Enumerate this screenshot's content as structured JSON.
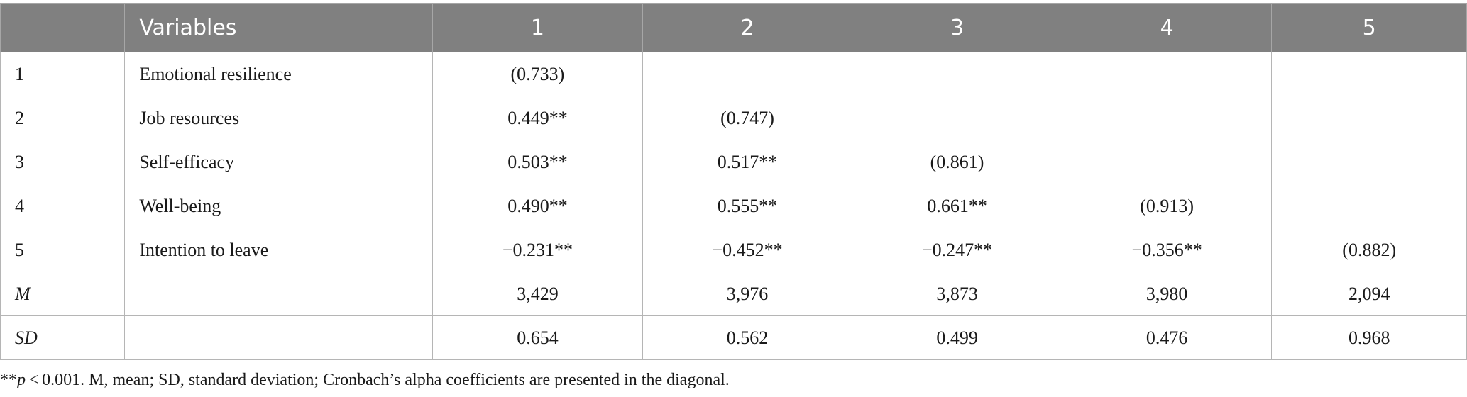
{
  "table": {
    "headers": [
      "",
      "Variables",
      "1",
      "2",
      "3",
      "4",
      "5"
    ],
    "rows": [
      {
        "idx": "1",
        "variable": "Emotional resilience",
        "cells": [
          "(0.733)",
          "",
          "",
          "",
          ""
        ]
      },
      {
        "idx": "2",
        "variable": "Job resources",
        "cells": [
          "0.449**",
          "(0.747)",
          "",
          "",
          ""
        ]
      },
      {
        "idx": "3",
        "variable": "Self-efficacy",
        "cells": [
          "0.503**",
          "0.517**",
          "(0.861)",
          "",
          ""
        ]
      },
      {
        "idx": "4",
        "variable": "Well-being",
        "cells": [
          "0.490**",
          "0.555**",
          "0.661**",
          "(0.913)",
          ""
        ]
      },
      {
        "idx": "5",
        "variable": "Intention to leave",
        "cells": [
          "−0.231**",
          "−0.452**",
          "−0.247**",
          "−0.356**",
          "(0.882)"
        ]
      },
      {
        "idx": "M",
        "variable": "",
        "cells": [
          "3,429",
          "3,976",
          "3,873",
          "3,980",
          "2,094"
        ]
      },
      {
        "idx": "SD",
        "variable": "",
        "cells": [
          "0.654",
          "0.562",
          "0.499",
          "0.476",
          "0.968"
        ]
      }
    ]
  },
  "footnote": {
    "stars": "**",
    "p": "p",
    "rest": " < 0.001. M, mean; SD, standard deviation; Cronbach’s alpha coefficients are presented in the diagonal."
  }
}
